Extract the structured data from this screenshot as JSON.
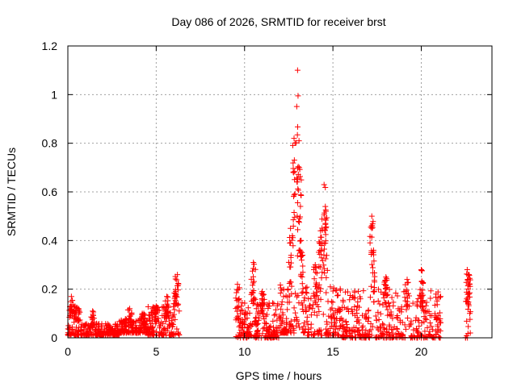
{
  "chart_data": {
    "type": "scatter",
    "title": "Day 086 of 2026, SRMTID for receiver brst",
    "xlabel": "GPS time / hours",
    "ylabel": "SRMTID / TECUs",
    "xlim": [
      0,
      24
    ],
    "ylim": [
      0,
      1.2
    ],
    "x_ticks": [
      0,
      5,
      10,
      15,
      20
    ],
    "y_ticks": [
      0,
      0.2,
      0.4,
      0.6,
      0.8,
      1,
      1.2
    ],
    "x_tick_labels": [
      "0",
      "5",
      "10",
      "15",
      "20"
    ],
    "y_tick_labels": [
      "0",
      "0.2",
      "0.4",
      "0.6",
      "0.8",
      "1",
      "1.2"
    ],
    "grid": true,
    "marker": "+",
    "series_color": "#ff0000",
    "series": [
      {
        "name": "SRMTID",
        "segments": [
          {
            "x_start": 0.0,
            "x_end": 2.9,
            "base": 0.01,
            "spread": 0.05,
            "count": 260,
            "peaks": [
              [
                0.2,
                0.17
              ],
              [
                0.4,
                0.13
              ],
              [
                0.6,
                0.12
              ],
              [
                1.4,
                0.11
              ]
            ]
          },
          {
            "x_start": 2.9,
            "x_end": 4.5,
            "base": 0.02,
            "spread": 0.06,
            "count": 160,
            "peaks": [
              [
                3.5,
                0.12
              ],
              [
                4.3,
                0.1
              ]
            ]
          },
          {
            "x_start": 4.5,
            "x_end": 6.3,
            "base": 0.01,
            "spread": 0.12,
            "count": 170,
            "peaks": [
              [
                5.0,
                0.13
              ],
              [
                5.6,
                0.17
              ],
              [
                6.1,
                0.19
              ],
              [
                6.2,
                0.26
              ]
            ]
          },
          {
            "x_start": 9.5,
            "x_end": 12.0,
            "base": 0.0,
            "spread": 0.15,
            "count": 230,
            "peaks": [
              [
                9.6,
                0.22
              ],
              [
                10.5,
                0.31
              ],
              [
                11.0,
                0.19
              ]
            ]
          },
          {
            "x_start": 12.0,
            "x_end": 13.4,
            "base": 0.02,
            "spread": 0.2,
            "count": 150,
            "peaks": [
              [
                12.6,
                0.45
              ],
              [
                12.8,
                0.82
              ],
              [
                13.0,
                1.1
              ],
              [
                13.1,
                0.7
              ],
              [
                13.2,
                0.4
              ]
            ]
          },
          {
            "x_start": 13.4,
            "x_end": 15.5,
            "base": 0.01,
            "spread": 0.2,
            "count": 170,
            "peaks": [
              [
                14.0,
                0.3
              ],
              [
                14.3,
                0.44
              ],
              [
                14.5,
                0.63
              ],
              [
                14.6,
                0.52
              ]
            ]
          },
          {
            "x_start": 15.5,
            "x_end": 21.1,
            "base": 0.0,
            "spread": 0.2,
            "count": 420,
            "peaks": [
              [
                17.2,
                0.5
              ],
              [
                17.3,
                0.36
              ],
              [
                18.0,
                0.25
              ],
              [
                19.2,
                0.24
              ],
              [
                20.0,
                0.28
              ]
            ]
          },
          {
            "x_start": 22.5,
            "x_end": 22.8,
            "base": 0.0,
            "spread": 0.18,
            "count": 30,
            "peaks": [
              [
                22.6,
                0.28
              ],
              [
                22.7,
                0.26
              ]
            ]
          }
        ]
      }
    ]
  }
}
